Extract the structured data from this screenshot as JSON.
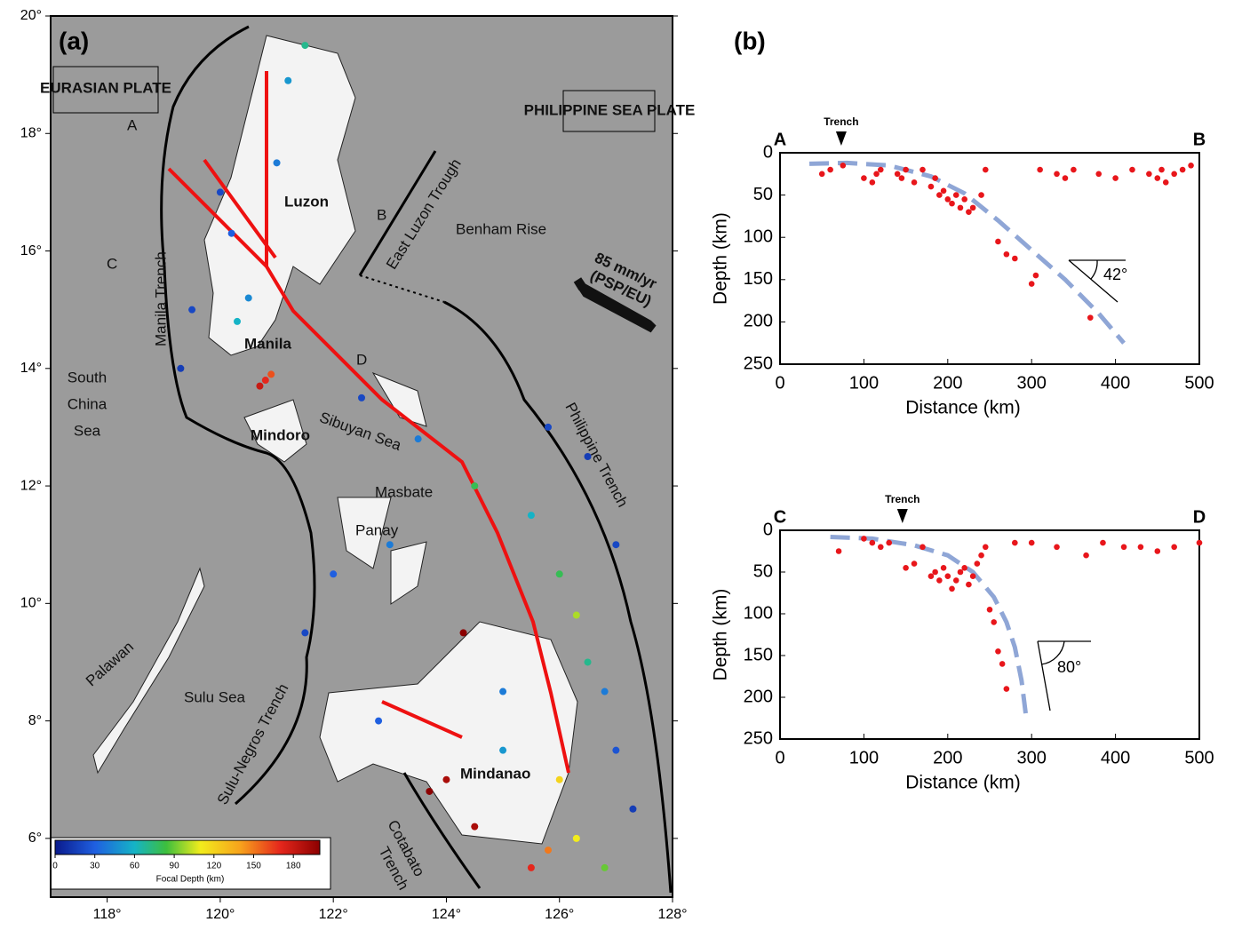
{
  "chart_data": [
    {
      "type": "map",
      "title": "(a)",
      "xlim": [
        117,
        128
      ],
      "ylim": [
        5,
        20
      ],
      "xticks": [
        {
          "value": 118,
          "label": "118°"
        },
        {
          "value": 120,
          "label": "120°"
        },
        {
          "value": 122,
          "label": "122°"
        },
        {
          "value": 124,
          "label": "124°"
        },
        {
          "value": 126,
          "label": "126°"
        },
        {
          "value": 128,
          "label": "128°"
        }
      ],
      "yticks": [
        {
          "value": 6,
          "label": "6°"
        },
        {
          "value": 8,
          "label": "8°"
        },
        {
          "value": 10,
          "label": "10°"
        },
        {
          "value": 12,
          "label": "12°"
        },
        {
          "value": 14,
          "label": "14°"
        },
        {
          "value": 16,
          "label": "16°"
        },
        {
          "value": 18,
          "label": "18°"
        },
        {
          "value": 20,
          "label": "20°"
        }
      ],
      "labels": {
        "eurasian": "EURASIAN PLATE",
        "psp": "PHILIPPINE SEA PLATE",
        "luzon": "Luzon",
        "manila": "Manila",
        "mindoro": "Mindoro",
        "masbate": "Masbate",
        "panay": "Panay",
        "mindanao": "Mindanao",
        "palawan": "Palawan",
        "scs1": "South",
        "scs2": "China",
        "scs3": "Sea",
        "sulu": "Sulu Sea",
        "sibuyan": "Sibuyan Sea",
        "benham": "Benham Rise",
        "manila_trench": "Manila Trench",
        "elt": "East Luzon Trough",
        "ph_trench": "Philippine Trench",
        "sn_trench": "Sulu-Negros Trench",
        "cot1": "Cotabato",
        "cot2": "Trench",
        "rate1": "85 mm/yr",
        "rate2": "(PSP/EU)",
        "pa": "A",
        "pb": "B",
        "pc": "C",
        "pd": "D"
      },
      "colorbar": {
        "label": "Focal Depth (km)",
        "clim": [
          0,
          200
        ],
        "ticks": [
          0,
          30,
          60,
          90,
          120,
          150,
          180
        ]
      },
      "quakes": {
        "lon": [
          120.8,
          120.7,
          120.9,
          120.3,
          120.5,
          121.0,
          121.2,
          121.5,
          120.0,
          119.5,
          119.3,
          120.2,
          122.5,
          123.5,
          124.5,
          125.5,
          126.0,
          126.3,
          126.5,
          126.8,
          127.0,
          126.5,
          125.8,
          124.3,
          124.0,
          123.7,
          125.8,
          126.3,
          126.8,
          125.5,
          124.5,
          122.8,
          121.5,
          122.0,
          123.0,
          125.0,
          126.0,
          127.0,
          127.3,
          125.0
        ],
        "lat": [
          13.8,
          13.7,
          13.9,
          14.8,
          15.2,
          17.5,
          18.9,
          19.5,
          17.0,
          15.0,
          14.0,
          16.3,
          13.5,
          12.8,
          12.0,
          11.5,
          10.5,
          9.8,
          9.0,
          8.5,
          11.0,
          12.5,
          13.0,
          9.5,
          7.0,
          6.8,
          5.8,
          6.0,
          5.5,
          5.5,
          6.2,
          8.0,
          9.5,
          10.5,
          11.0,
          7.5,
          7.0,
          7.5,
          6.5,
          8.5
        ],
        "depth": [
          170,
          180,
          160,
          60,
          45,
          40,
          50,
          70,
          20,
          20,
          15,
          30,
          20,
          40,
          80,
          60,
          80,
          100,
          70,
          40,
          20,
          15,
          20,
          200,
          190,
          200,
          150,
          110,
          90,
          170,
          190,
          30,
          20,
          30,
          40,
          50,
          120,
          25,
          15,
          40
        ]
      }
    },
    {
      "type": "scatter",
      "title": "(b)",
      "start_label": "A",
      "end_label": "B",
      "trench_label": "Trench",
      "trench_x": 73,
      "angle_label": "42°",
      "x_label": "Distance (km)",
      "y_label": "Depth (km)",
      "xlim": [
        0,
        500
      ],
      "ylim": [
        0,
        250
      ],
      "xticks": [
        0,
        100,
        200,
        300,
        400,
        500
      ],
      "yticks": [
        0,
        50,
        100,
        150,
        200,
        250
      ],
      "color": "#e8161b",
      "line_color": "#8fa6d6",
      "x": [
        50,
        60,
        75,
        100,
        110,
        115,
        120,
        140,
        145,
        150,
        160,
        170,
        180,
        185,
        190,
        195,
        200,
        205,
        210,
        215,
        220,
        225,
        230,
        240,
        245,
        260,
        270,
        280,
        300,
        305,
        310,
        330,
        340,
        350,
        370,
        380,
        400,
        420,
        440,
        450,
        455,
        460,
        470,
        480,
        490
      ],
      "values": [
        25,
        20,
        15,
        30,
        35,
        25,
        20,
        25,
        30,
        20,
        35,
        20,
        40,
        30,
        50,
        45,
        55,
        60,
        50,
        65,
        55,
        70,
        65,
        50,
        20,
        105,
        120,
        125,
        155,
        145,
        20,
        25,
        30,
        20,
        195,
        25,
        30,
        20,
        25,
        30,
        20,
        35,
        25,
        20,
        15
      ],
      "slab": {
        "x": [
          35,
          80,
          130,
          180,
          220,
          260,
          300,
          340,
          380,
          410
        ],
        "values": [
          13,
          12,
          15,
          28,
          48,
          80,
          115,
          150,
          190,
          225
        ]
      }
    },
    {
      "type": "scatter",
      "start_label": "C",
      "end_label": "D",
      "trench_label": "Trench",
      "trench_x": 146,
      "angle_label": "80°",
      "x_label": "Distance (km)",
      "y_label": "Depth (km)",
      "xlim": [
        0,
        500
      ],
      "ylim": [
        0,
        250
      ],
      "xticks": [
        0,
        100,
        200,
        300,
        400,
        500
      ],
      "yticks": [
        0,
        50,
        100,
        150,
        200,
        250
      ],
      "color": "#e8161b",
      "line_color": "#8fa6d6",
      "x": [
        70,
        100,
        110,
        120,
        130,
        150,
        160,
        170,
        180,
        185,
        190,
        195,
        200,
        205,
        210,
        215,
        220,
        225,
        230,
        235,
        240,
        245,
        250,
        255,
        260,
        265,
        270,
        280,
        300,
        330,
        365,
        385,
        410,
        430,
        450,
        470,
        500
      ],
      "values": [
        25,
        10,
        15,
        20,
        15,
        45,
        40,
        20,
        55,
        50,
        60,
        45,
        55,
        70,
        60,
        50,
        45,
        65,
        55,
        40,
        30,
        20,
        95,
        110,
        145,
        160,
        190,
        15,
        15,
        20,
        30,
        15,
        20,
        20,
        25,
        20,
        15
      ],
      "slab": {
        "x": [
          60,
          110,
          160,
          200,
          230,
          255,
          270,
          280,
          288,
          293
        ],
        "values": [
          8,
          10,
          18,
          30,
          50,
          80,
          110,
          140,
          180,
          220
        ]
      }
    }
  ]
}
